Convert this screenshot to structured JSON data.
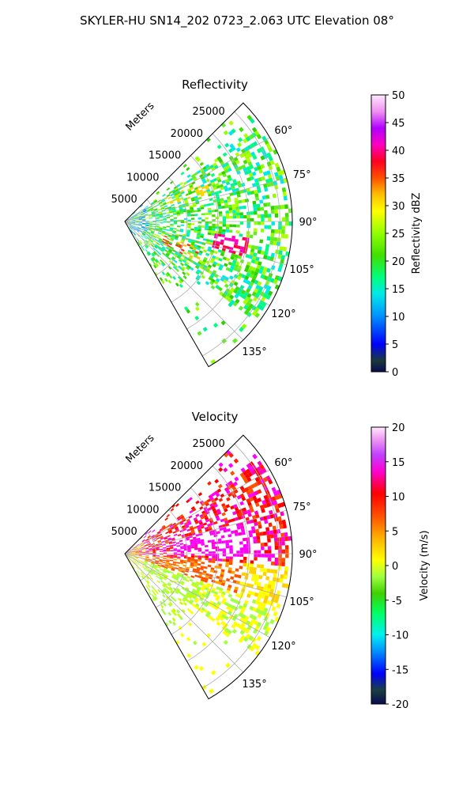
{
  "suptitle": "SKYLER-HU  SN14_202  0723_2.063 UTC Elevation 08°",
  "range_label": "Meters",
  "chart_data": [
    {
      "type": "heatmap",
      "subtype": "polar-sector (PPI radar)",
      "title": "Reflectivity",
      "theta_range_deg": [
        45,
        150
      ],
      "theta_ticks": [
        "60°",
        "75°",
        "90°",
        "105°",
        "120°",
        "135°"
      ],
      "r_range_m": [
        0,
        27000
      ],
      "r_ticks": [
        "5000",
        "10000",
        "15000",
        "20000",
        "25000"
      ],
      "colorbar": {
        "label": "Reflectivity dBZ",
        "range": [
          0,
          50
        ],
        "ticks": [
          "0",
          "5",
          "10",
          "15",
          "20",
          "25",
          "30",
          "35",
          "40",
          "45",
          "50"
        ]
      },
      "grid": true
    },
    {
      "type": "heatmap",
      "subtype": "polar-sector (PPI radar)",
      "title": "Velocity",
      "theta_range_deg": [
        45,
        150
      ],
      "theta_ticks": [
        "60°",
        "75°",
        "90°",
        "105°",
        "120°",
        "135°"
      ],
      "r_range_m": [
        0,
        27000
      ],
      "r_ticks": [
        "5000",
        "10000",
        "15000",
        "20000",
        "25000"
      ],
      "colorbar": {
        "label": "Velocity (m/s)",
        "range": [
          -20,
          20
        ],
        "ticks": [
          "-20",
          "-15",
          "-10",
          "-5",
          "0",
          "5",
          "10",
          "15",
          "20"
        ]
      },
      "grid": true
    }
  ]
}
